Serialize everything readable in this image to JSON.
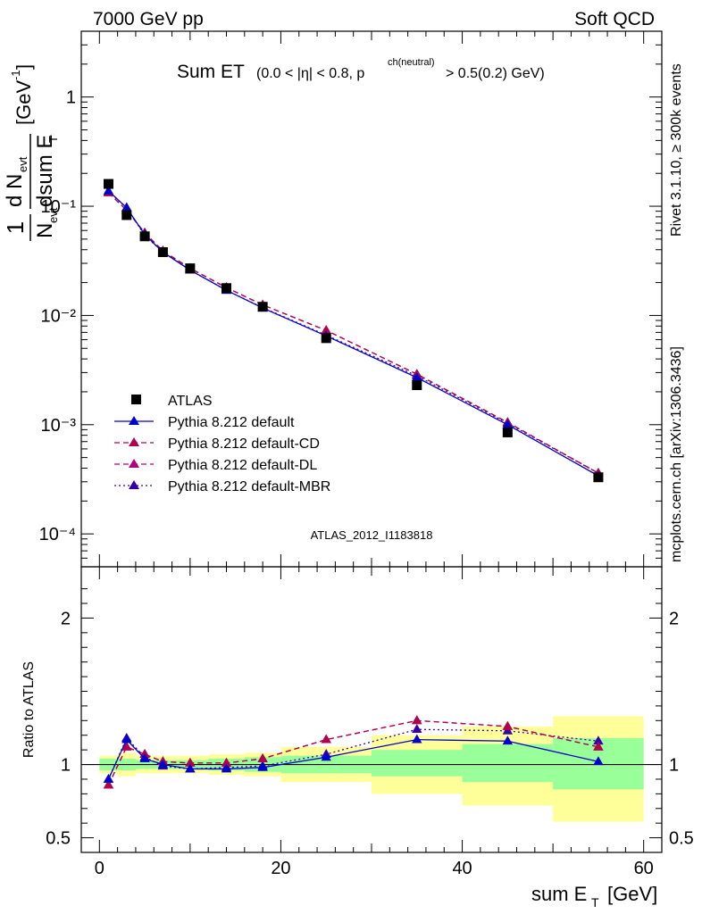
{
  "header": {
    "left": "7000 GeV pp",
    "right": "Soft QCD"
  },
  "side_labels": {
    "rivet": "Rivet 3.1.10, ≥ 300k events",
    "mcplots": "mcplots.cern.ch [arXiv:1306.3436]"
  },
  "plot_title": {
    "main": "Sum ET",
    "cond_a": "(0.0 < |η| < 0.8, p",
    "cond_sup": "ch(neutral)",
    "cond_b": " > 0.5(0.2) GeV)"
  },
  "analysis_tag": "ATLAS_2012_I1183818",
  "axes": {
    "ylabel_main": "1/N_evt dN_evt/dsum E_T [GeV^-1]",
    "ylabel_ratio": "Ratio to ATLAS",
    "xlabel": "sum E",
    "xlabel_sub": "T",
    "xlabel_unit": "[GeV]",
    "ylabel_main_parts": {
      "one": "1",
      "n": "N",
      "evt": "evt",
      "dn": "d N",
      "dsum": "dsum E",
      "t": "T",
      "unit": "[GeV",
      "unit_sup": "-1",
      "unit_close": "]"
    }
  },
  "legend": [
    {
      "label": "ATLAS",
      "color": "#000000",
      "style": "marker-square"
    },
    {
      "label": "Pythia 8.212 default",
      "color": "#0000cc",
      "style": "solid"
    },
    {
      "label": "Pythia 8.212 default-CD",
      "color": "#b2004d",
      "style": "dashed"
    },
    {
      "label": "Pythia 8.212 default-DL",
      "color": "#b2007a",
      "style": "dashed"
    },
    {
      "label": "Pythia 8.212 default-MBR",
      "color": "#3300aa",
      "style": "dotted"
    }
  ],
  "chart_data": {
    "type": "line",
    "x": [
      1,
      3,
      5,
      7,
      10,
      14,
      18,
      25,
      35,
      45,
      55
    ],
    "bin_edges": [
      0,
      2,
      4,
      6,
      8,
      12,
      16,
      20,
      30,
      40,
      50,
      60
    ],
    "main": {
      "yscale": "log",
      "ylim": [
        5e-05,
        4
      ],
      "y_tick_labels": [
        "10⁻⁴",
        "10⁻³",
        "10⁻²",
        "10⁻¹",
        "1"
      ],
      "y_tick_values": [
        0.0001,
        0.001,
        0.01,
        0.1,
        1
      ],
      "series": [
        {
          "name": "ATLAS",
          "values": [
            0.16,
            0.083,
            0.053,
            0.038,
            0.027,
            0.0178,
            0.012,
            0.0062,
            0.0023,
            0.00085,
            0.00033
          ]
        },
        {
          "name": "Pythia 8.212 default",
          "values": [
            0.138,
            0.097,
            0.055,
            0.038,
            0.026,
            0.017,
            0.0117,
            0.0065,
            0.0027,
            0.001,
            0.00034
          ]
        },
        {
          "name": "Pythia 8.212 default-CD",
          "values": [
            0.133,
            0.092,
            0.057,
            0.039,
            0.027,
            0.018,
            0.0125,
            0.0073,
            0.0029,
            0.00105,
            0.00036
          ]
        },
        {
          "name": "Pythia 8.212 default-DL",
          "values": [
            0.133,
            0.092,
            0.057,
            0.039,
            0.027,
            0.018,
            0.0125,
            0.0073,
            0.0029,
            0.00105,
            0.00036
          ]
        },
        {
          "name": "Pythia 8.212 default-MBR",
          "values": [
            0.136,
            0.097,
            0.054,
            0.038,
            0.026,
            0.017,
            0.0118,
            0.0066,
            0.0028,
            0.00103,
            0.00036
          ]
        }
      ]
    },
    "ratio": {
      "ylim": [
        0.4,
        2.35
      ],
      "y_tick_values": [
        0.5,
        1,
        2
      ],
      "y_tick_labels": [
        "0.5",
        "1",
        "2"
      ],
      "x_tick_values": [
        0,
        20,
        40,
        60
      ],
      "x_tick_labels": [
        "0",
        "20",
        "40",
        "60"
      ],
      "band_green": [
        [
          0.96,
          1.04
        ],
        [
          0.96,
          1.04
        ],
        [
          0.97,
          1.03
        ],
        [
          0.97,
          1.03
        ],
        [
          0.97,
          1.03
        ],
        [
          0.96,
          1.04
        ],
        [
          0.95,
          1.05
        ],
        [
          0.94,
          1.06
        ],
        [
          0.92,
          1.1
        ],
        [
          0.88,
          1.14
        ],
        [
          0.83,
          1.18
        ]
      ],
      "band_yellow": [
        [
          0.94,
          1.06
        ],
        [
          0.92,
          1.08
        ],
        [
          0.94,
          1.06
        ],
        [
          0.94,
          1.06
        ],
        [
          0.94,
          1.06
        ],
        [
          0.93,
          1.07
        ],
        [
          0.92,
          1.08
        ],
        [
          0.88,
          1.12
        ],
        [
          0.8,
          1.2
        ],
        [
          0.72,
          1.26
        ],
        [
          0.61,
          1.33
        ]
      ],
      "series": [
        {
          "name": "Pythia 8.212 default",
          "values": [
            0.9,
            1.17,
            1.04,
            1.0,
            0.97,
            0.97,
            0.98,
            1.05,
            1.17,
            1.16,
            1.02
          ]
        },
        {
          "name": "Pythia 8.212 default-CD",
          "values": [
            0.86,
            1.12,
            1.07,
            1.02,
            1.01,
            1.01,
            1.04,
            1.17,
            1.3,
            1.26,
            1.12
          ]
        },
        {
          "name": "Pythia 8.212 default-DL",
          "values": [
            0.86,
            1.12,
            1.07,
            1.02,
            1.01,
            1.01,
            1.04,
            1.17,
            1.3,
            1.26,
            1.12
          ]
        },
        {
          "name": "Pythia 8.212 default-MBR",
          "values": [
            0.9,
            1.18,
            1.05,
            0.99,
            0.97,
            0.98,
            0.99,
            1.07,
            1.24,
            1.23,
            1.16
          ]
        }
      ]
    }
  }
}
